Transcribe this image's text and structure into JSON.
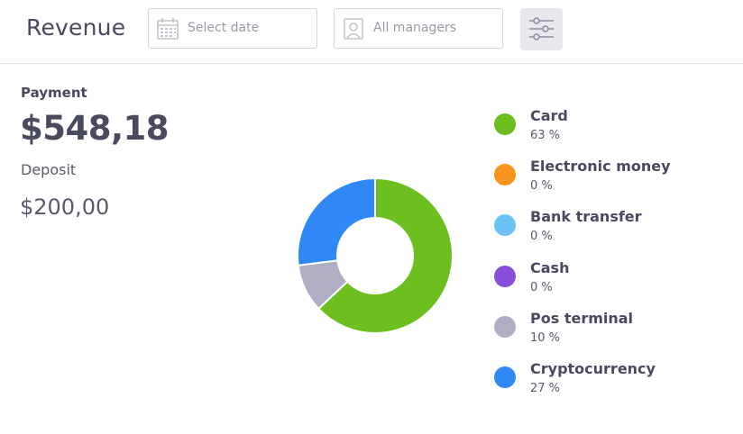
{
  "header": {
    "title": "Revenue",
    "date_placeholder": "Select date",
    "manager_placeholder": "All managers",
    "filter_icon": "sliders-icon"
  },
  "summary": {
    "payment_label": "Payment",
    "payment_amount": "$548,18",
    "deposit_label": "Deposit",
    "deposit_amount": "$200,00"
  },
  "chart_data": {
    "type": "pie",
    "categories": [
      "Card",
      "Electronic money",
      "Bank transfer",
      "Cash",
      "Pos terminal",
      "Cryptocurrency"
    ],
    "values": [
      63,
      0,
      0,
      0,
      10,
      27
    ],
    "labels": [
      "63 %",
      "0 %",
      "0 %",
      "0 %",
      "10 %",
      "27 %"
    ],
    "colors": [
      "#6dbf1f",
      "#f7941d",
      "#6cc2f5",
      "#8a4fd8",
      "#b0aec4",
      "#2f88f5"
    ],
    "legend_position": "right"
  }
}
